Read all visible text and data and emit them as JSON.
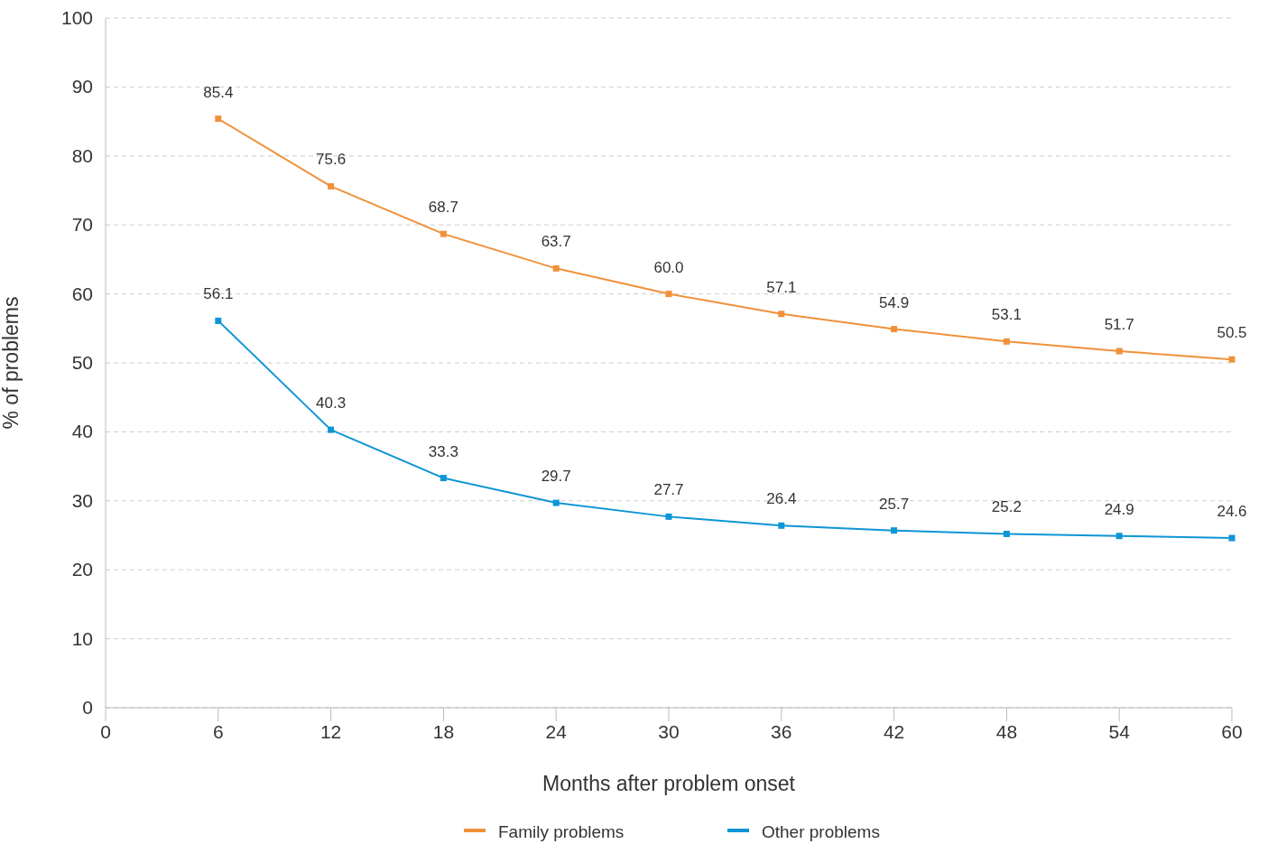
{
  "chart_data": {
    "type": "line",
    "xlabel": "Months after problem onset",
    "ylabel": "% of problems",
    "x": [
      6,
      12,
      18,
      24,
      30,
      36,
      42,
      48,
      54,
      60
    ],
    "series": [
      {
        "name": "Family problems",
        "color": "#f0913a",
        "values": [
          85.4,
          75.6,
          68.7,
          63.7,
          60.0,
          57.1,
          54.9,
          53.1,
          51.7,
          50.5
        ],
        "value_labels": [
          "85.4",
          "75.6",
          "68.7",
          "63.7",
          "60.0",
          "57.1",
          "54.9",
          "53.1",
          "51.7",
          "50.5"
        ]
      },
      {
        "name": "Other problems",
        "color": "#0e95d6",
        "values": [
          56.1,
          40.3,
          33.3,
          29.7,
          27.7,
          26.4,
          25.7,
          25.2,
          24.9,
          24.6
        ]
      }
    ],
    "xlim": [
      0,
      60
    ],
    "xticks": [
      0,
      6,
      12,
      18,
      24,
      30,
      36,
      42,
      48,
      54,
      60
    ],
    "ylim": [
      0,
      100
    ],
    "yticks": [
      0,
      10,
      20,
      30,
      40,
      50,
      60,
      70,
      80,
      90,
      100
    ],
    "grid": "y",
    "legend": "bottom",
    "marker": "square",
    "line_style": "solid",
    "data_labels": true
  }
}
